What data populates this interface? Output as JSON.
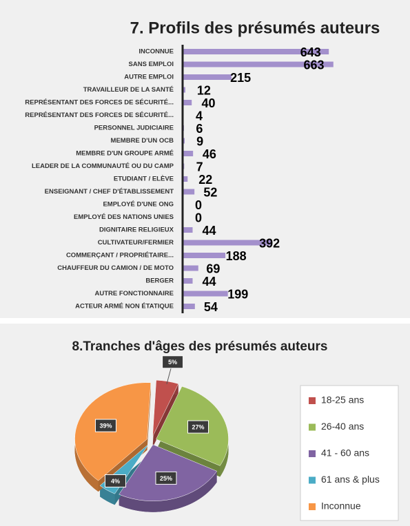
{
  "chart_data": [
    {
      "type": "bar",
      "orientation": "horizontal",
      "title": "7. Profils des présumés auteurs",
      "categories": [
        "INCONNUE",
        "SANS EMPLOI",
        "AUTRE EMPLOI",
        "TRAVAILLEUR DE LA SANTÉ",
        "REPRÉSENTANT DES FORCES DE SÉCURITÉ...",
        "REPRÉSENTANT DES FORCES DE SÉCURITÉ...",
        "PERSONNEL JUDICIAIRE",
        "MEMBRE D'UN OCB",
        "MEMBRE D'UN GROUPE ARMÉ",
        "LEADER DE LA COMMUNAUTÉ OU DU CAMP",
        "ETUDIANT / ELÈVE",
        "ENSEIGNANT / CHEF D'ÉTABLISSEMENT",
        "EMPLOYÉ D'UNE ONG",
        "EMPLOYÉ DES NATIONS UNIES",
        "DIGNITAIRE RELIGIEUX",
        "CULTIVATEUR/FERMIER",
        "COMMERÇANT / PROPRIÉTAIRE...",
        "CHAUFFEUR DU CAMION / DE MOTO",
        "BERGER",
        "AUTRE FONCTIONNAIRE",
        "ACTEUR ARMÉ NON ÉTATIQUE"
      ],
      "values": [
        643,
        663,
        215,
        12,
        40,
        4,
        6,
        9,
        46,
        7,
        22,
        52,
        0,
        0,
        44,
        392,
        188,
        69,
        44,
        199,
        54
      ],
      "color": "#a390cc",
      "xlim": [
        0,
        1000
      ]
    },
    {
      "type": "pie",
      "title": "8.Tranches d'âges des présumés auteurs",
      "categories": [
        "18-25 ans",
        "26-40 ans",
        "41 - 60 ans",
        "61 ans & plus",
        "Inconnue"
      ],
      "values": [
        5,
        27,
        25,
        4,
        39
      ],
      "value_labels": [
        "5%",
        "27%",
        "25%",
        "4%",
        "39%"
      ],
      "colors": [
        "#c0504d",
        "#9bbb59",
        "#8064a2",
        "#4bacc6",
        "#f79646"
      ],
      "legend": "right"
    }
  ]
}
